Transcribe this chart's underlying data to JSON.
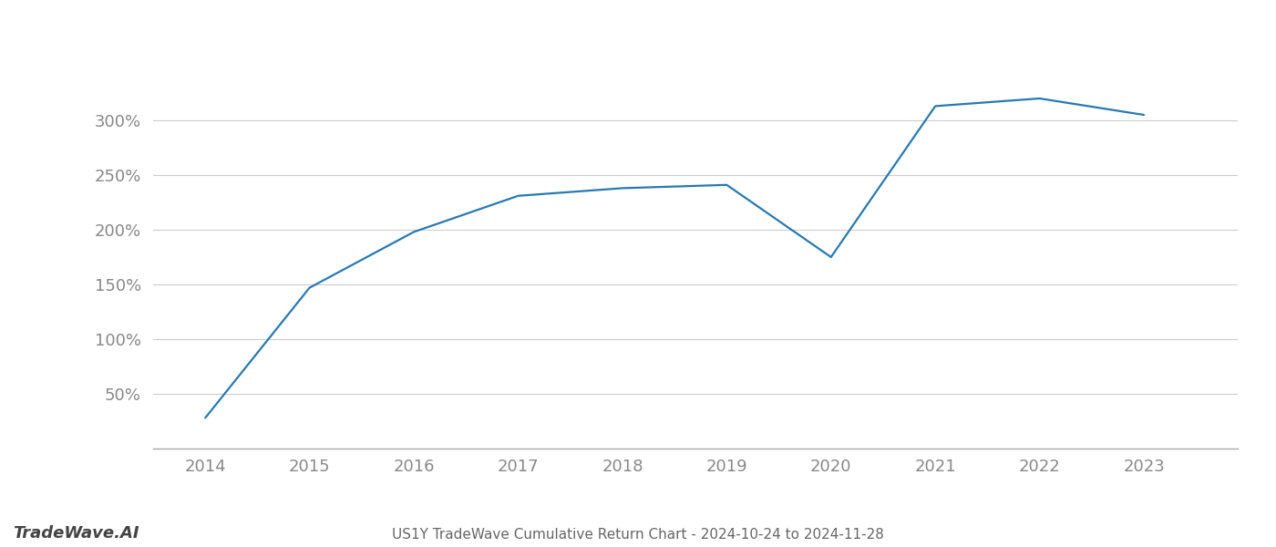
{
  "years": [
    2014,
    2015,
    2016,
    2017,
    2018,
    2019,
    2020,
    2021,
    2022,
    2023
  ],
  "values": [
    28,
    147,
    198,
    231,
    238,
    241,
    175,
    313,
    320,
    305
  ],
  "line_color": "#2979b0",
  "background_color": "#ffffff",
  "grid_color": "#cccccc",
  "title": "US1Y TradeWave Cumulative Return Chart - 2024-10-24 to 2024-11-28",
  "watermark": "TradeWave.AI",
  "yticks": [
    50,
    100,
    150,
    200,
    250,
    300
  ],
  "ylim": [
    0,
    350
  ],
  "xlim": [
    2013.5,
    2023.9
  ],
  "xticks": [
    2014,
    2015,
    2016,
    2017,
    2018,
    2019,
    2020,
    2021,
    2022,
    2023
  ]
}
